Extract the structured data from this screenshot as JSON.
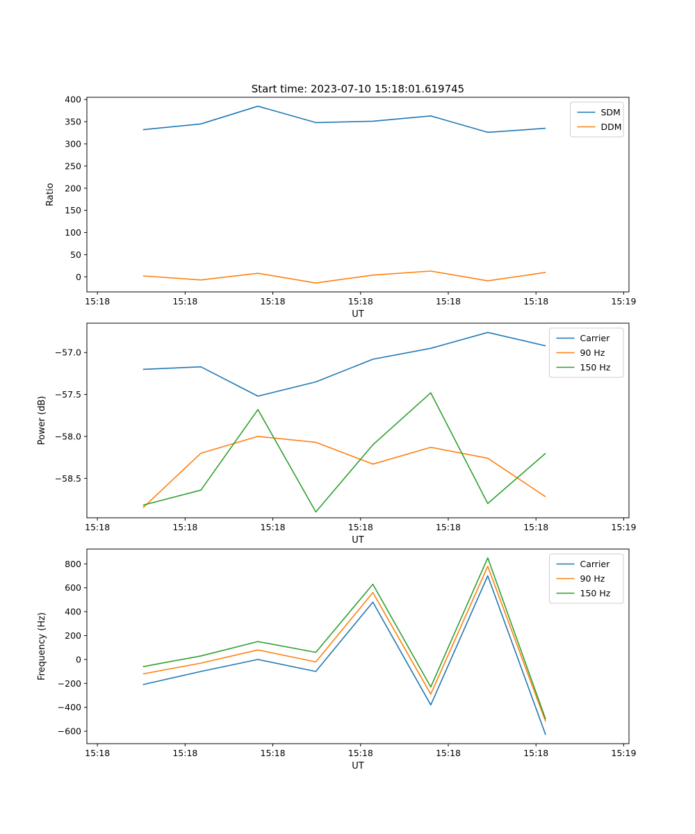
{
  "figure": {
    "background": "#ffffff"
  },
  "colors": {
    "blue": "#1f77b4",
    "orange": "#ff7f0e",
    "green": "#2ca02c"
  },
  "chart_data": [
    {
      "type": "line",
      "title": "Start time: 2023-07-10 15:18:01.619745",
      "xlabel": "UT",
      "ylabel": "Ratio",
      "grid": false,
      "legend_position": "upper right",
      "x": [
        5.2,
        11.8,
        18.3,
        24.9,
        31.4,
        38.0,
        44.5,
        51.1
      ],
      "xlim": [
        -1.2,
        60.6
      ],
      "ylim": [
        -34,
        405
      ],
      "xticks": {
        "values": [
          0,
          10,
          20,
          30,
          40,
          50,
          60
        ],
        "labels": [
          "15:18",
          "15:18",
          "15:18",
          "15:18",
          "15:18",
          "15:18",
          "15:19"
        ]
      },
      "yticks": {
        "values": [
          0,
          50,
          100,
          150,
          200,
          250,
          300,
          350,
          400
        ],
        "labels": [
          "0",
          "50",
          "100",
          "150",
          "200",
          "250",
          "300",
          "350",
          "400"
        ]
      },
      "series": [
        {
          "name": "SDM",
          "color": "#1f77b4",
          "values": [
            332,
            345,
            385,
            348,
            351,
            363,
            326,
            335
          ]
        },
        {
          "name": "DDM",
          "color": "#ff7f0e",
          "values": [
            2,
            -7,
            8,
            -14,
            4,
            13,
            -9,
            10
          ]
        }
      ]
    },
    {
      "type": "line",
      "title": "",
      "xlabel": "UT",
      "ylabel": "Power (dB)",
      "grid": false,
      "legend_position": "upper right",
      "x": [
        5.2,
        11.8,
        18.3,
        24.9,
        31.4,
        38.0,
        44.5,
        51.1
      ],
      "xlim": [
        -1.2,
        60.6
      ],
      "ylim": [
        -58.97,
        -56.65
      ],
      "xticks": {
        "values": [
          0,
          10,
          20,
          30,
          40,
          50,
          60
        ],
        "labels": [
          "15:18",
          "15:18",
          "15:18",
          "15:18",
          "15:18",
          "15:18",
          "15:19"
        ]
      },
      "yticks": {
        "values": [
          -58.5,
          -58.0,
          -57.5,
          -57.0
        ],
        "labels": [
          "−58.5",
          "−58.0",
          "−57.5",
          "−57.0"
        ]
      },
      "series": [
        {
          "name": "Carrier",
          "color": "#1f77b4",
          "values": [
            -57.2,
            -57.17,
            -57.52,
            -57.35,
            -57.08,
            -56.95,
            -56.76,
            -56.92
          ]
        },
        {
          "name": "90 Hz",
          "color": "#ff7f0e",
          "values": [
            -58.85,
            -58.2,
            -58.0,
            -58.07,
            -58.33,
            -58.13,
            -58.26,
            -58.72
          ]
        },
        {
          "name": "150 Hz",
          "color": "#2ca02c",
          "values": [
            -58.82,
            -58.64,
            -57.68,
            -58.9,
            -58.1,
            -57.48,
            -58.8,
            -58.2
          ]
        }
      ]
    },
    {
      "type": "line",
      "title": "",
      "xlabel": "UT",
      "ylabel": "Frequency (Hz)",
      "grid": false,
      "legend_position": "upper right",
      "x": [
        5.2,
        11.8,
        18.3,
        24.9,
        31.4,
        38.0,
        44.5,
        51.1
      ],
      "xlim": [
        -1.2,
        60.6
      ],
      "ylim": [
        -704,
        924
      ],
      "xticks": {
        "values": [
          0,
          10,
          20,
          30,
          40,
          50,
          60
        ],
        "labels": [
          "15:18",
          "15:18",
          "15:18",
          "15:18",
          "15:18",
          "15:18",
          "15:19"
        ]
      },
      "yticks": {
        "values": [
          -600,
          -400,
          -200,
          0,
          200,
          400,
          600,
          800
        ],
        "labels": [
          "−600",
          "−400",
          "−200",
          "0",
          "200",
          "400",
          "600",
          "800"
        ]
      },
      "series": [
        {
          "name": "Carrier",
          "color": "#1f77b4",
          "values": [
            -210,
            -100,
            0,
            -100,
            480,
            -380,
            700,
            -630
          ]
        },
        {
          "name": "90 Hz",
          "color": "#ff7f0e",
          "values": [
            -120,
            -30,
            80,
            -20,
            560,
            -290,
            780,
            -520
          ]
        },
        {
          "name": "150 Hz",
          "color": "#2ca02c",
          "values": [
            -60,
            30,
            150,
            60,
            630,
            -230,
            850,
            -500
          ]
        }
      ]
    }
  ]
}
